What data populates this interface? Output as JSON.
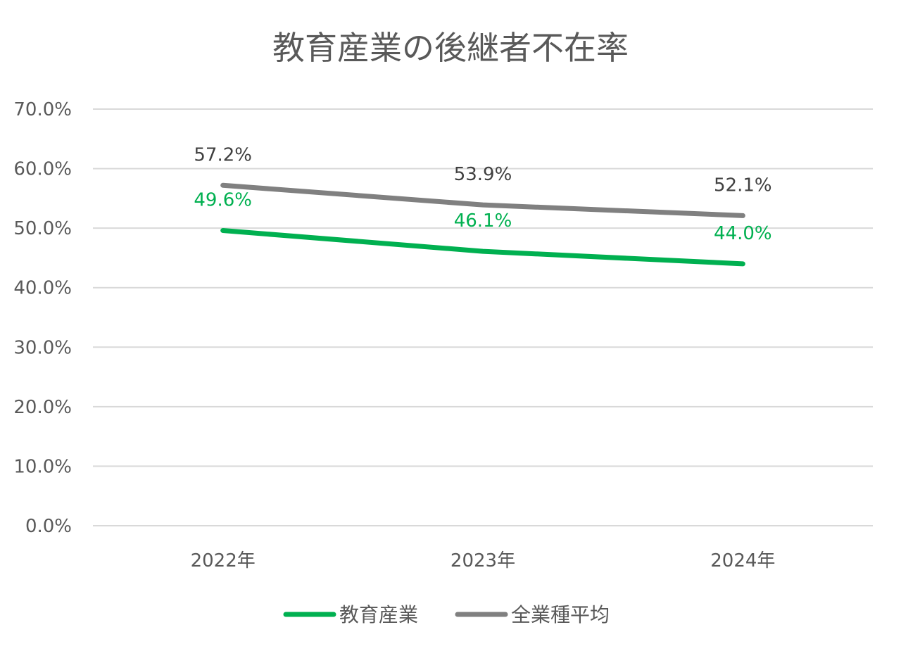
{
  "chart_data": {
    "type": "line",
    "title": "教育産業の後継者不在率",
    "categories": [
      "2022年",
      "2023年",
      "2024年"
    ],
    "ylim": [
      0,
      70
    ],
    "yticks": [
      "0.0%",
      "10.0%",
      "20.0%",
      "30.0%",
      "40.0%",
      "50.0%",
      "60.0%",
      "70.0%"
    ],
    "grid": true,
    "legend_position": "bottom",
    "series": [
      {
        "name": "教育産業",
        "values": [
          49.6,
          46.1,
          44.0
        ],
        "labels": [
          "49.6%",
          "46.1%",
          "44.0%"
        ],
        "color": "#00b050"
      },
      {
        "name": "全業種平均",
        "values": [
          57.2,
          53.9,
          52.1
        ],
        "labels": [
          "57.2%",
          "53.9%",
          "52.1%"
        ],
        "color": "#808080"
      }
    ]
  }
}
